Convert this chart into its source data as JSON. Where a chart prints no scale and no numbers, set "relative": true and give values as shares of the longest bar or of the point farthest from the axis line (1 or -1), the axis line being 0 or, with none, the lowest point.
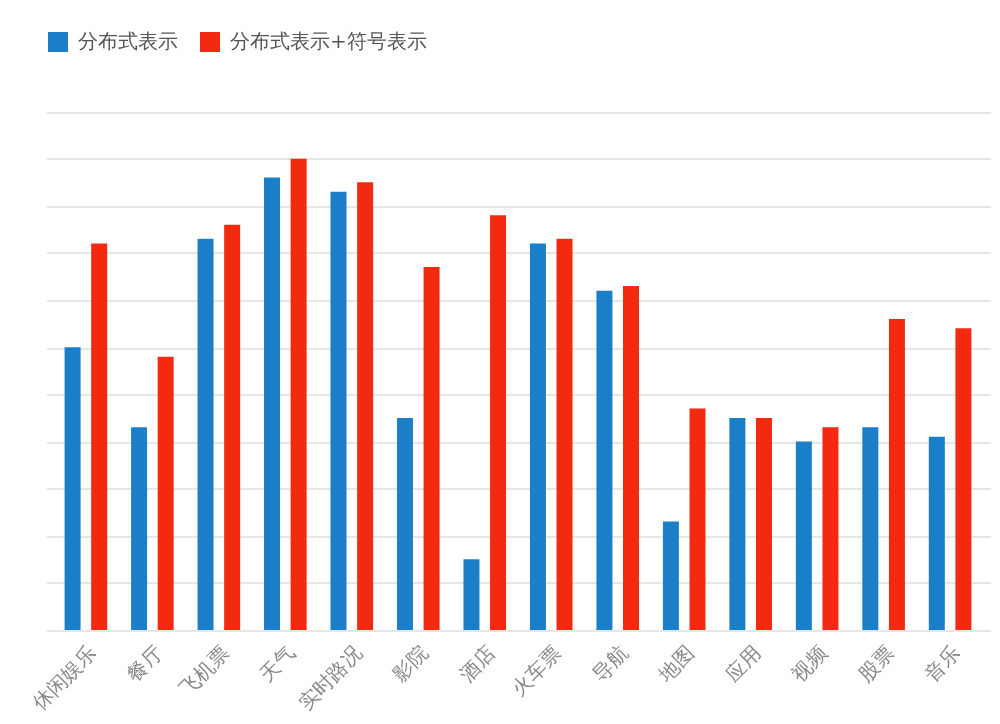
{
  "chart_data": {
    "type": "bar",
    "relative": true,
    "grid": "y",
    "legend": "top",
    "categories": [
      "休闲娱乐",
      "餐厅",
      "飞机票",
      "天气",
      "实时路况",
      "影院",
      "酒店",
      "火车票",
      "导航",
      "地图",
      "应用",
      "视频",
      "股票",
      "音乐"
    ],
    "series": [
      {
        "name": "分布式表示",
        "color": "#1a7ec8",
        "values": [
          0.6,
          0.43,
          0.83,
          0.96,
          0.93,
          0.45,
          0.15,
          0.82,
          0.72,
          0.23,
          0.45,
          0.4,
          0.43,
          0.41
        ]
      },
      {
        "name": "分布式表示+符号表示",
        "color": "#f42a10",
        "values": [
          0.82,
          0.58,
          0.86,
          1,
          0.95,
          0.77,
          0.88,
          0.83,
          0.73,
          0.47,
          0.45,
          0.43,
          0.66,
          0.64
        ]
      }
    ]
  }
}
